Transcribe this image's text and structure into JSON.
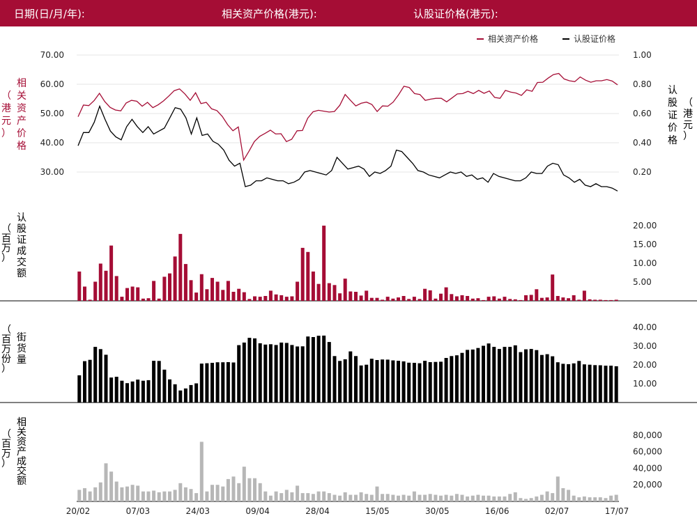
{
  "header": {
    "date_label": "日期(日/月/年):",
    "underlying_price_label": "相关资产价格(港元):",
    "warrant_price_label": "认股证价格(港元):"
  },
  "colors": {
    "brand": "#a50d35",
    "underlying": "#a50d35",
    "warrant": "#000000",
    "warrant_turnover": "#a50d35",
    "outstanding": "#000000",
    "underlying_turnover": "#b7b7b7"
  },
  "chart_data": [
    {
      "type": "line",
      "legend_position": "top-right",
      "grid": true,
      "series": [
        {
          "name": "相关资产价格",
          "axis": "left",
          "values": [
            48.9,
            52.9,
            52.7,
            54.4,
            56.9,
            54.1,
            52.1,
            51.2,
            50.9,
            53.6,
            54.5,
            54.2,
            52.5,
            53.8,
            52,
            53,
            54.3,
            56,
            57.8,
            58.4,
            56.7,
            54.5,
            57.1,
            53.4,
            53.8,
            51.6,
            51,
            49,
            46.2,
            44.1,
            45.4,
            34.1,
            37.1,
            40.4,
            42.2,
            43.2,
            44.3,
            43,
            43.1,
            40.4,
            41.2,
            44.1,
            44.2,
            48.4,
            50.6,
            51.1,
            50.8,
            50.5,
            50.7,
            52.8,
            56.5,
            54.5,
            52.6,
            53.5,
            53.9,
            53.1,
            50.7,
            52.6,
            52.5,
            53.9,
            56.4,
            59.3,
            58.9,
            56.8,
            56.5,
            54.5,
            54.9,
            55.2,
            55.2,
            54,
            55.3,
            56.7,
            56.8,
            57.6,
            56.8,
            57.9,
            56.9,
            57.7,
            55.5,
            55.2,
            57.9,
            57.3,
            57,
            56.2,
            58.1,
            57.6,
            60.6,
            60.7,
            62.1,
            63.3,
            63.7,
            61.8,
            61.2,
            60.9,
            62.5,
            61.4,
            60.7,
            61.2,
            61.2,
            61.6,
            61.1,
            59.8
          ]
        },
        {
          "name": "认股证价格",
          "axis": "right",
          "values": [
            0.38,
            0.47,
            0.47,
            0.54,
            0.65,
            0.56,
            0.48,
            0.44,
            0.42,
            0.51,
            0.56,
            0.51,
            0.47,
            0.51,
            0.46,
            0.48,
            0.5,
            0.57,
            0.64,
            0.63,
            0.57,
            0.46,
            0.57,
            0.45,
            0.46,
            0.41,
            0.39,
            0.35,
            0.28,
            0.24,
            0.26,
            0.1,
            0.11,
            0.14,
            0.14,
            0.16,
            0.15,
            0.14,
            0.14,
            0.12,
            0.13,
            0.15,
            0.2,
            0.21,
            0.2,
            0.19,
            0.18,
            0.21,
            0.3,
            0.26,
            0.22,
            0.23,
            0.24,
            0.22,
            0.17,
            0.2,
            0.19,
            0.21,
            0.24,
            0.35,
            0.34,
            0.3,
            0.26,
            0.21,
            0.2,
            0.18,
            0.17,
            0.16,
            0.18,
            0.2,
            0.19,
            0.2,
            0.17,
            0.18,
            0.15,
            0.16,
            0.13,
            0.19,
            0.17,
            0.16,
            0.15,
            0.14,
            0.14,
            0.16,
            0.2,
            0.19,
            0.19,
            0.24,
            0.26,
            0.25,
            0.18,
            0.16,
            0.13,
            0.15,
            0.11,
            0.1,
            0.12,
            0.1,
            0.1,
            0.09,
            0.07
          ]
        }
      ],
      "y_left": {
        "label": "相关资产价格",
        "unit": "（港元）",
        "ticks": [
          "30.00",
          "40.00",
          "50.00",
          "60.00",
          "70.00"
        ],
        "range": [
          20,
          70
        ]
      },
      "y_right": {
        "label": "认股证价格",
        "unit": "（港元）",
        "ticks": [
          "0.20",
          "0.40",
          "0.60",
          "0.80",
          "1.00"
        ],
        "range": [
          0,
          1
        ]
      }
    },
    {
      "type": "bar",
      "title_label": "认股证成交额",
      "unit": "（百万）",
      "ticks": [
        "5.00",
        "10.00",
        "15.00",
        "20.00"
      ],
      "range": [
        0,
        20
      ],
      "values": [
        7.8,
        3.8,
        0.3,
        5.1,
        9.9,
        8,
        14.7,
        6.6,
        1.1,
        3.4,
        3.8,
        3.6,
        0.6,
        0.7,
        5.3,
        0.6,
        6.4,
        7.3,
        11.8,
        17.8,
        9.8,
        5.5,
        2.2,
        7.1,
        3.1,
        6.1,
        5.1,
        2.9,
        5.3,
        2.4,
        3.2,
        2.3,
        0.5,
        1.2,
        1.1,
        1.3,
        2.7,
        1.7,
        1.5,
        1.1,
        1.2,
        5.1,
        14.1,
        13,
        7.8,
        4.5,
        20,
        4.7,
        4.2,
        2,
        5.9,
        2.5,
        2.4,
        1.4,
        2.7,
        0.8,
        0.8,
        0.3,
        1.1,
        0.6,
        0.9,
        1.3,
        0.5,
        1.1,
        0.5,
        3.2,
        2.8,
        0.6,
        1.9,
        3.6,
        1.8,
        1.2,
        1.5,
        1.3,
        0.6,
        0.7,
        0.2,
        1.1,
        1.2,
        0.6,
        1.1,
        0.5,
        0.4,
        0.2,
        1.5,
        1.6,
        3.1,
        0.8,
        0.9,
        7,
        1.3,
        0.9,
        0.7,
        1.5,
        0.3,
        2.7,
        0.4,
        0.3,
        0.3,
        0.2,
        0.2,
        0.3
      ]
    },
    {
      "type": "bar",
      "title_label": "街货量",
      "unit": "（百万份）",
      "ticks": [
        "10.00",
        "20.00",
        "30.00",
        "40.00"
      ],
      "range": [
        0,
        40
      ],
      "values": [
        14.5,
        22,
        22.7,
        29.6,
        28.4,
        25.4,
        13.3,
        13.7,
        11.6,
        10.3,
        11.2,
        12.2,
        11.6,
        11.9,
        22.2,
        22.1,
        17.5,
        12.3,
        9.7,
        6.4,
        7.5,
        9.3,
        10.2,
        20.7,
        20.9,
        21.1,
        21.4,
        21.4,
        21.5,
        21.3,
        30.5,
        31.9,
        34.4,
        34.1,
        31.5,
        30.8,
        31,
        30.6,
        31.9,
        31.7,
        30.6,
        29.8,
        29.9,
        35.1,
        34.8,
        35.5,
        35.6,
        32.2,
        24.7,
        22.1,
        23,
        27.2,
        24.7,
        19.7,
        20.1,
        23.3,
        22.6,
        22.9,
        22.8,
        22.4,
        22.2,
        21.9,
        21.2,
        21.1,
        20.9,
        22.2,
        21.5,
        21.6,
        21.7,
        23.7,
        24.7,
        25.1,
        26.4,
        28,
        28.2,
        29,
        30.2,
        31.4,
        29.6,
        28.5,
        29.6,
        29.6,
        30.4,
        26.8,
        28.3,
        28.5,
        27.9,
        25.3,
        25.7,
        24.6,
        21.4,
        20.6,
        20.4,
        20.8,
        22.1,
        20.3,
        20.1,
        19.9,
        19.8,
        19.6,
        19.6,
        19.3
      ]
    },
    {
      "type": "bar",
      "title_label": "相关资产成交额",
      "unit": "（百万）",
      "ticks": [
        "20,000",
        "40,000",
        "60,000",
        "80,000"
      ],
      "range": [
        0,
        90000
      ],
      "x_ticks": [
        "20/02",
        "07/03",
        "24/03",
        "09/04",
        "28/04",
        "15/05",
        "30/05",
        "16/06",
        "02/07",
        "17/07"
      ],
      "values": [
        14000,
        16000,
        12000,
        17000,
        23000,
        46000,
        36000,
        24000,
        17000,
        18000,
        20000,
        19000,
        12000,
        12000,
        13000,
        11000,
        12000,
        12000,
        14000,
        22000,
        17000,
        15000,
        10000,
        72000,
        12000,
        20000,
        20000,
        18000,
        27000,
        30000,
        22000,
        42000,
        28000,
        28000,
        22000,
        12000,
        7000,
        12000,
        10000,
        14000,
        11000,
        19000,
        10000,
        10000,
        9000,
        12000,
        12000,
        10000,
        8000,
        7000,
        11000,
        8000,
        8000,
        11000,
        9000,
        8000,
        18000,
        9000,
        9000,
        8000,
        7000,
        8000,
        7000,
        12000,
        8000,
        8000,
        9000,
        8000,
        7000,
        8000,
        7000,
        9000,
        8000,
        6000,
        7000,
        8000,
        7000,
        7000,
        6000,
        6000,
        6000,
        9000,
        11000,
        4000,
        3000,
        4000,
        6000,
        8000,
        12000,
        10000,
        30000,
        16000,
        14000,
        7000,
        5000,
        6000,
        5000,
        5000,
        5000,
        4000,
        7000,
        8000
      ]
    }
  ]
}
